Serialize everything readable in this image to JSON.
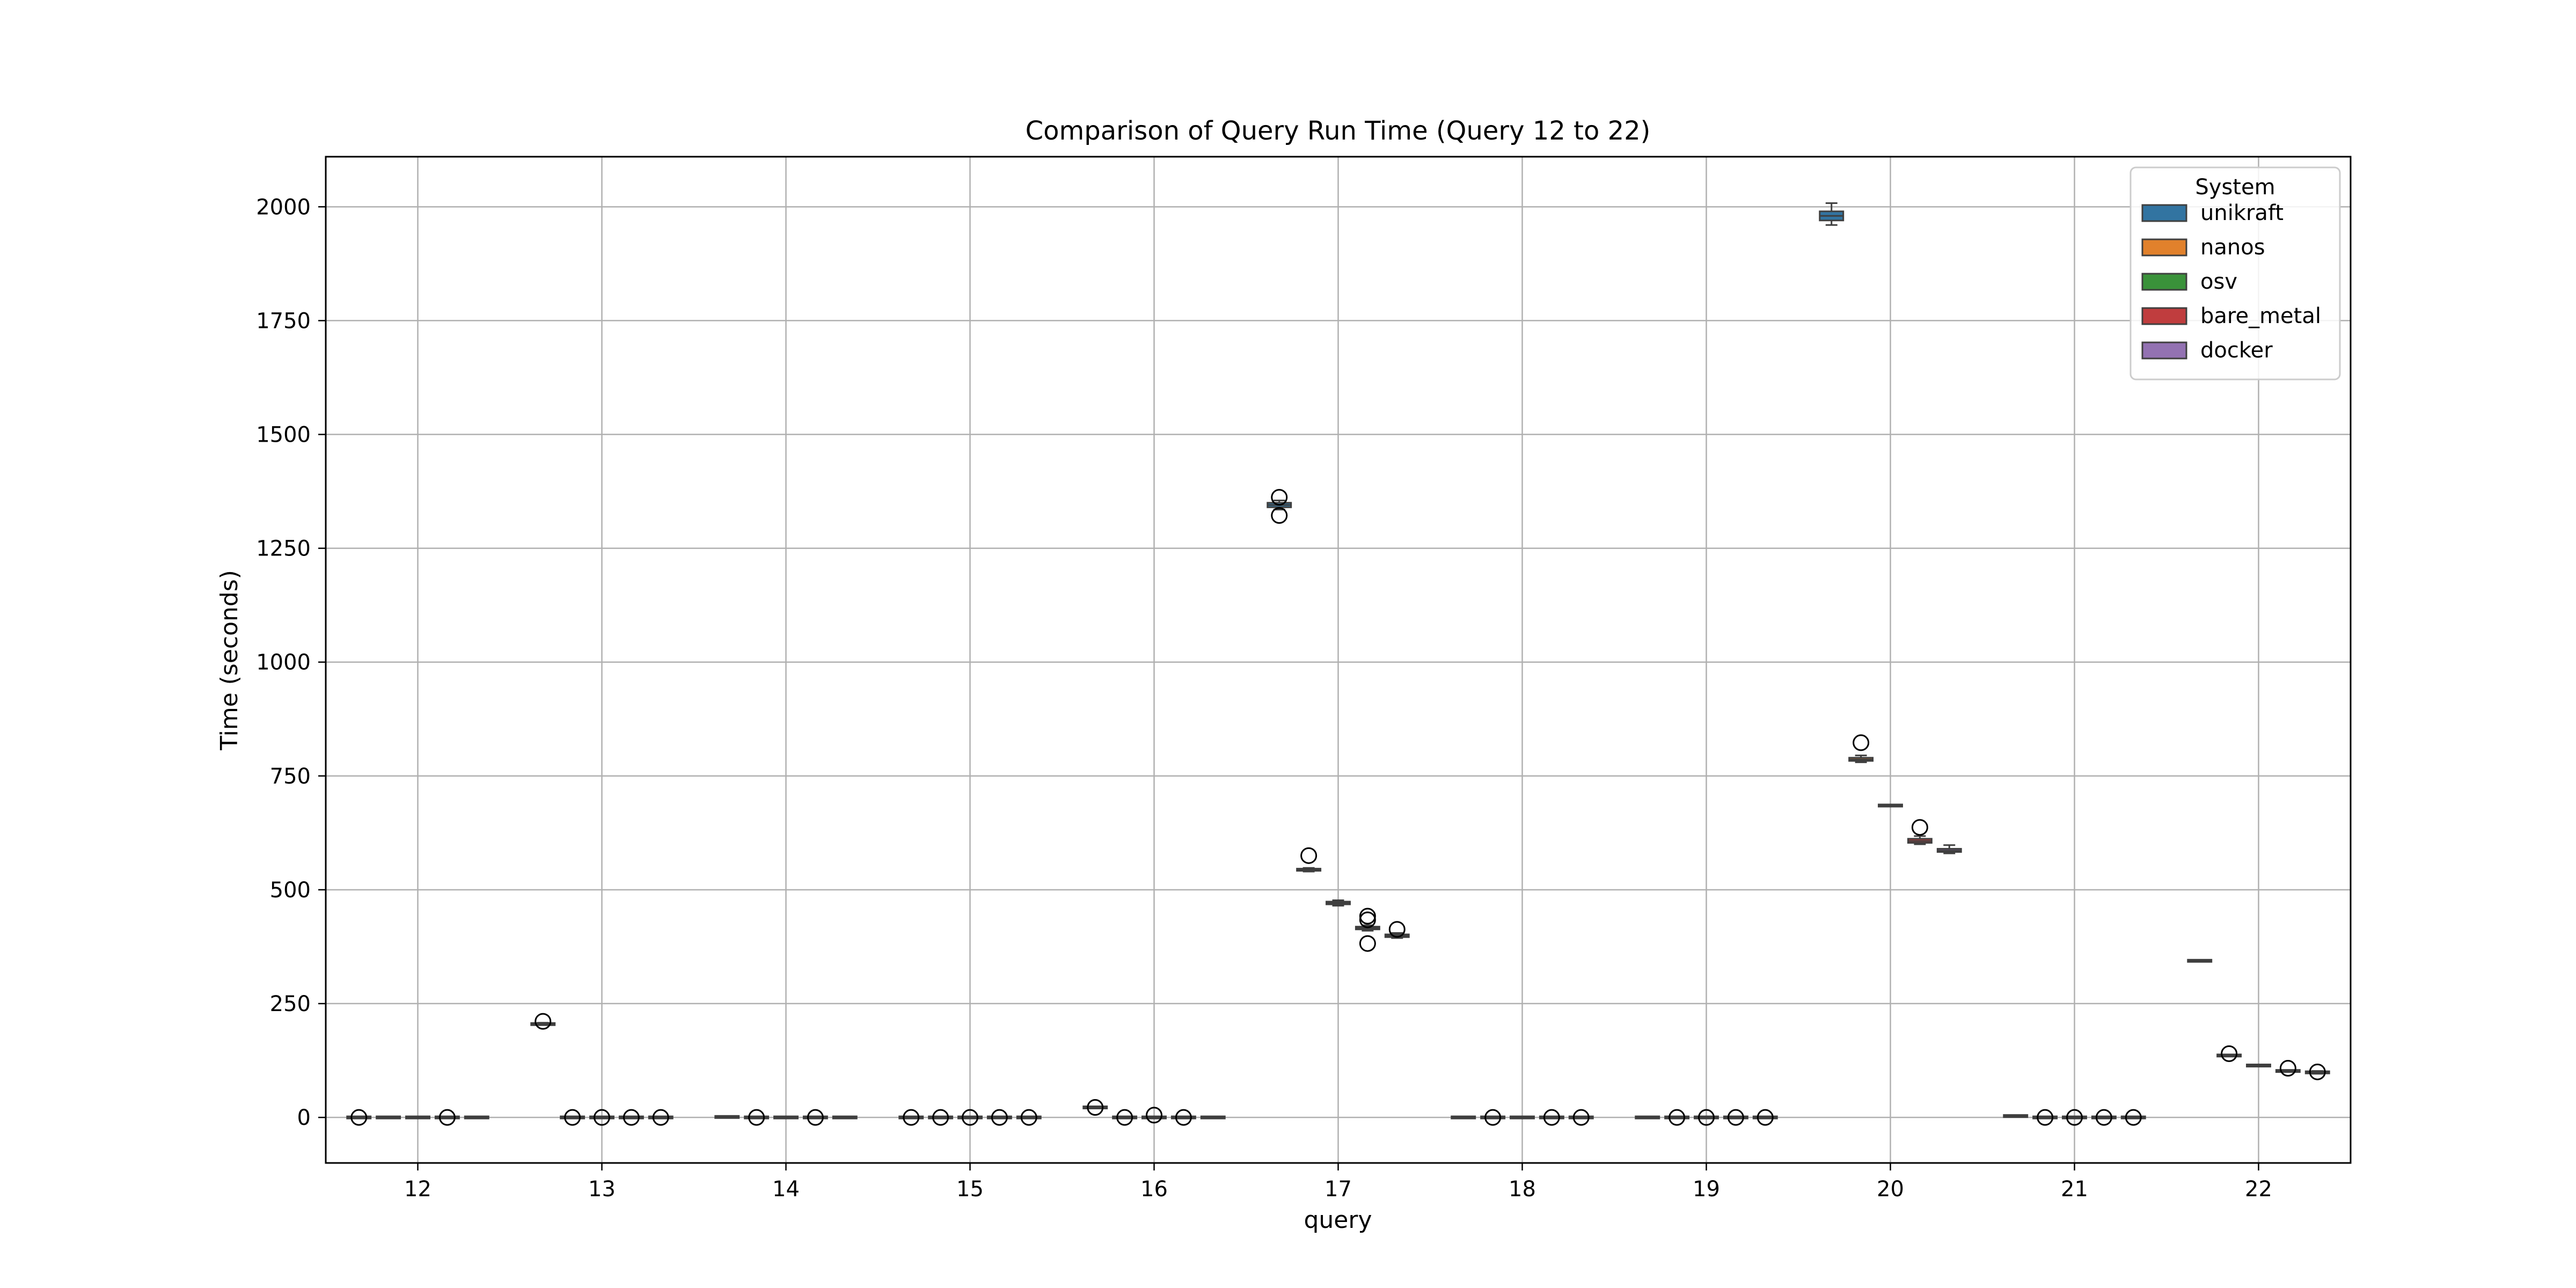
{
  "chart_data": {
    "type": "boxplot",
    "title": "Comparison of Query Run Time (Query 12 to 22)",
    "xlabel": "query",
    "ylabel": "Time (seconds)",
    "ylim": [
      -100,
      2110
    ],
    "yticks": [
      0,
      250,
      500,
      750,
      1000,
      1250,
      1500,
      1750,
      2000
    ],
    "grid": true,
    "legend": {
      "title": "System",
      "position": "top-right",
      "entries": [
        "unikraft",
        "nanos",
        "osv",
        "bare_metal",
        "docker"
      ]
    },
    "categories": [
      "12",
      "13",
      "14",
      "15",
      "16",
      "17",
      "18",
      "19",
      "20",
      "21",
      "22"
    ],
    "series": [
      {
        "name": "unikraft",
        "color": "#3274a1",
        "boxes": [
          {
            "q": "12",
            "min": 0,
            "q1": 0,
            "median": 0,
            "q3": 0,
            "max": 0,
            "fliers": [
              0
            ]
          },
          {
            "q": "13",
            "min": 203,
            "q1": 204,
            "median": 205,
            "q3": 206,
            "max": 208,
            "fliers": [
              211
            ]
          },
          {
            "q": "14",
            "min": 1,
            "q1": 1,
            "median": 1,
            "q3": 1,
            "max": 1,
            "fliers": []
          },
          {
            "q": "15",
            "min": 0,
            "q1": 0,
            "median": 0,
            "q3": 0,
            "max": 0,
            "fliers": [
              0
            ]
          },
          {
            "q": "16",
            "min": 20,
            "q1": 21,
            "median": 22,
            "q3": 23,
            "max": 24,
            "fliers": [
              22
            ]
          },
          {
            "q": "17",
            "min": 1335,
            "q1": 1340,
            "median": 1345,
            "q3": 1350,
            "max": 1355,
            "fliers": [
              1362,
              1322
            ]
          },
          {
            "q": "18",
            "min": 0,
            "q1": 0,
            "median": 0,
            "q3": 0,
            "max": 0,
            "fliers": []
          },
          {
            "q": "19",
            "min": 0,
            "q1": 0,
            "median": 0,
            "q3": 0,
            "max": 0,
            "fliers": []
          },
          {
            "q": "20",
            "min": 1960,
            "q1": 1970,
            "median": 1980,
            "q3": 1990,
            "max": 2008,
            "fliers": []
          },
          {
            "q": "21",
            "min": 3,
            "q1": 3,
            "median": 3,
            "q3": 3,
            "max": 3,
            "fliers": []
          },
          {
            "q": "22",
            "min": 342,
            "q1": 343,
            "median": 344,
            "q3": 345,
            "max": 346,
            "fliers": []
          }
        ]
      },
      {
        "name": "nanos",
        "color": "#e1812c",
        "boxes": [
          {
            "q": "12",
            "min": 0,
            "q1": 0,
            "median": 0,
            "q3": 0,
            "max": 0,
            "fliers": []
          },
          {
            "q": "13",
            "min": 0,
            "q1": 0,
            "median": 0,
            "q3": 0,
            "max": 0,
            "fliers": [
              0
            ]
          },
          {
            "q": "14",
            "min": 0,
            "q1": 0,
            "median": 0,
            "q3": 0,
            "max": 0,
            "fliers": [
              0
            ]
          },
          {
            "q": "15",
            "min": 0,
            "q1": 0,
            "median": 0,
            "q3": 0,
            "max": 0,
            "fliers": [
              0
            ]
          },
          {
            "q": "16",
            "min": 0,
            "q1": 0,
            "median": 0,
            "q3": 0,
            "max": 0,
            "fliers": [
              0
            ]
          },
          {
            "q": "17",
            "min": 540,
            "q1": 542,
            "median": 544,
            "q3": 546,
            "max": 548,
            "fliers": [
              575
            ]
          },
          {
            "q": "18",
            "min": 0,
            "q1": 0,
            "median": 0,
            "q3": 0,
            "max": 0,
            "fliers": [
              0
            ]
          },
          {
            "q": "19",
            "min": 0,
            "q1": 0,
            "median": 0,
            "q3": 0,
            "max": 0,
            "fliers": [
              0
            ]
          },
          {
            "q": "20",
            "min": 780,
            "q1": 783,
            "median": 786,
            "q3": 790,
            "max": 795,
            "fliers": [
              823
            ]
          },
          {
            "q": "21",
            "min": 0,
            "q1": 0,
            "median": 0,
            "q3": 0,
            "max": 0,
            "fliers": [
              0
            ]
          },
          {
            "q": "22",
            "min": 134,
            "q1": 135,
            "median": 136,
            "q3": 137,
            "max": 138,
            "fliers": [
              140
            ]
          }
        ]
      },
      {
        "name": "osv",
        "color": "#3a923a",
        "boxes": [
          {
            "q": "12",
            "min": 0,
            "q1": 0,
            "median": 0,
            "q3": 0,
            "max": 0,
            "fliers": []
          },
          {
            "q": "13",
            "min": 0,
            "q1": 0,
            "median": 0,
            "q3": 0,
            "max": 0,
            "fliers": [
              0
            ]
          },
          {
            "q": "14",
            "min": 0,
            "q1": 0,
            "median": 0,
            "q3": 0,
            "max": 0,
            "fliers": []
          },
          {
            "q": "15",
            "min": 0,
            "q1": 0,
            "median": 0,
            "q3": 0,
            "max": 0,
            "fliers": [
              0
            ]
          },
          {
            "q": "16",
            "min": 0,
            "q1": 0,
            "median": 0,
            "q3": 0,
            "max": 0,
            "fliers": [
              5
            ]
          },
          {
            "q": "17",
            "min": 465,
            "q1": 468,
            "median": 471,
            "q3": 474,
            "max": 477,
            "fliers": []
          },
          {
            "q": "18",
            "min": 0,
            "q1": 0,
            "median": 0,
            "q3": 0,
            "max": 0,
            "fliers": []
          },
          {
            "q": "19",
            "min": 0,
            "q1": 0,
            "median": 0,
            "q3": 0,
            "max": 0,
            "fliers": [
              0
            ]
          },
          {
            "q": "20",
            "min": 683,
            "q1": 684,
            "median": 685,
            "q3": 686,
            "max": 687,
            "fliers": []
          },
          {
            "q": "21",
            "min": 0,
            "q1": 0,
            "median": 0,
            "q3": 0,
            "max": 0,
            "fliers": [
              0
            ]
          },
          {
            "q": "22",
            "min": 112,
            "q1": 113,
            "median": 114,
            "q3": 115,
            "max": 116,
            "fliers": []
          }
        ]
      },
      {
        "name": "bare_metal",
        "color": "#c03d3e",
        "boxes": [
          {
            "q": "12",
            "min": 0,
            "q1": 0,
            "median": 0,
            "q3": 0,
            "max": 0,
            "fliers": [
              0
            ]
          },
          {
            "q": "13",
            "min": 0,
            "q1": 0,
            "median": 0,
            "q3": 0,
            "max": 0,
            "fliers": [
              0
            ]
          },
          {
            "q": "14",
            "min": 0,
            "q1": 0,
            "median": 0,
            "q3": 0,
            "max": 0,
            "fliers": [
              0
            ]
          },
          {
            "q": "15",
            "min": 0,
            "q1": 0,
            "median": 0,
            "q3": 0,
            "max": 0,
            "fliers": [
              0
            ]
          },
          {
            "q": "16",
            "min": 0,
            "q1": 0,
            "median": 0,
            "q3": 0,
            "max": 0,
            "fliers": [
              0
            ]
          },
          {
            "q": "17",
            "min": 410,
            "q1": 413,
            "median": 416,
            "q3": 419,
            "max": 422,
            "fliers": [
              442,
              434,
              382
            ]
          },
          {
            "q": "18",
            "min": 0,
            "q1": 0,
            "median": 0,
            "q3": 0,
            "max": 0,
            "fliers": [
              0
            ]
          },
          {
            "q": "19",
            "min": 0,
            "q1": 0,
            "median": 0,
            "q3": 0,
            "max": 0,
            "fliers": [
              0
            ]
          },
          {
            "q": "20",
            "min": 600,
            "q1": 603,
            "median": 607,
            "q3": 612,
            "max": 618,
            "fliers": [
              637
            ]
          },
          {
            "q": "21",
            "min": 0,
            "q1": 0,
            "median": 0,
            "q3": 0,
            "max": 0,
            "fliers": [
              0
            ]
          },
          {
            "q": "22",
            "min": 100,
            "q1": 101,
            "median": 102,
            "q3": 103,
            "max": 104,
            "fliers": [
              108
            ]
          }
        ]
      },
      {
        "name": "docker",
        "color": "#9372b2",
        "boxes": [
          {
            "q": "12",
            "min": 0,
            "q1": 0,
            "median": 0,
            "q3": 0,
            "max": 0,
            "fliers": []
          },
          {
            "q": "13",
            "min": 0,
            "q1": 0,
            "median": 0,
            "q3": 0,
            "max": 0,
            "fliers": [
              0
            ]
          },
          {
            "q": "14",
            "min": 0,
            "q1": 0,
            "median": 0,
            "q3": 0,
            "max": 0,
            "fliers": []
          },
          {
            "q": "15",
            "min": 0,
            "q1": 0,
            "median": 0,
            "q3": 0,
            "max": 0,
            "fliers": [
              0
            ]
          },
          {
            "q": "16",
            "min": 0,
            "q1": 0,
            "median": 0,
            "q3": 0,
            "max": 0,
            "fliers": []
          },
          {
            "q": "17",
            "min": 394,
            "q1": 396,
            "median": 399,
            "q3": 402,
            "max": 405,
            "fliers": [
              413
            ]
          },
          {
            "q": "18",
            "min": 0,
            "q1": 0,
            "median": 0,
            "q3": 0,
            "max": 0,
            "fliers": [
              0
            ]
          },
          {
            "q": "19",
            "min": 0,
            "q1": 0,
            "median": 0,
            "q3": 0,
            "max": 0,
            "fliers": [
              0
            ]
          },
          {
            "q": "20",
            "min": 580,
            "q1": 583,
            "median": 586,
            "q3": 590,
            "max": 598,
            "fliers": []
          },
          {
            "q": "21",
            "min": 0,
            "q1": 0,
            "median": 0,
            "q3": 0,
            "max": 0,
            "fliers": [
              0
            ]
          },
          {
            "q": "22",
            "min": 96,
            "q1": 98,
            "median": 99,
            "q3": 100,
            "max": 102,
            "fliers": [
              100
            ]
          }
        ]
      }
    ]
  }
}
